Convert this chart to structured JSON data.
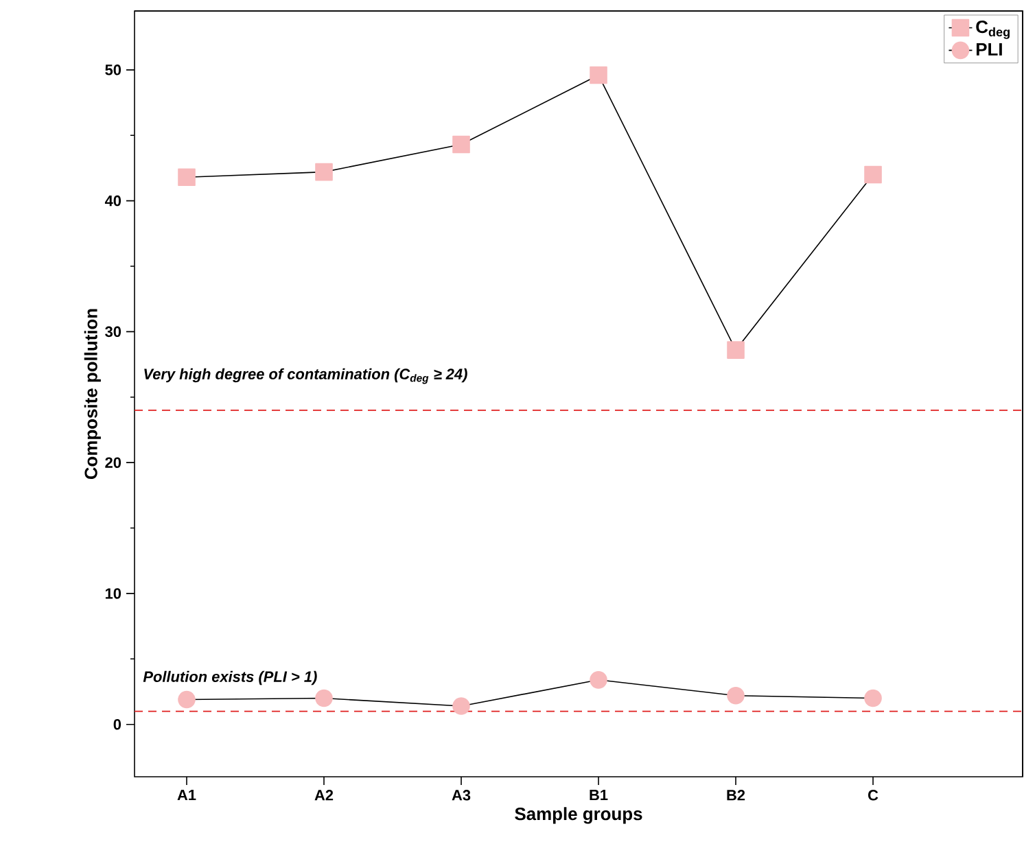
{
  "chart_data": {
    "type": "line",
    "xlabel": "Sample groups",
    "ylabel": "Composite pollution",
    "categories": [
      "A1",
      "A2",
      "A3",
      "B1",
      "B2",
      "C"
    ],
    "series": [
      {
        "name": "C$_{deg}$",
        "color": "#f7b9bb",
        "marker": "square",
        "values": [
          41.8,
          42.2,
          44.3,
          49.6,
          28.6,
          42.0
        ]
      },
      {
        "name": "PLI",
        "color": "#f7b9bb",
        "marker": "circle",
        "values": [
          1.9,
          2.0,
          1.4,
          3.4,
          2.2,
          2.0
        ]
      }
    ],
    "ylim": [
      -4,
      54.5
    ],
    "yticks": [
      0,
      10,
      20,
      30,
      40,
      50
    ],
    "ref_lines": [
      {
        "axis": "y",
        "value": 24,
        "label": "Very high degree of contamination (C$_{deg}$ ≥ 24)",
        "color": "#e02020",
        "line_style": "dashed"
      },
      {
        "axis": "y",
        "value": 1,
        "label": "Pollution exists (PLI > 1)",
        "color": "#e02020",
        "line_style": "dashed"
      }
    ],
    "legend": "top right",
    "grid": false
  }
}
